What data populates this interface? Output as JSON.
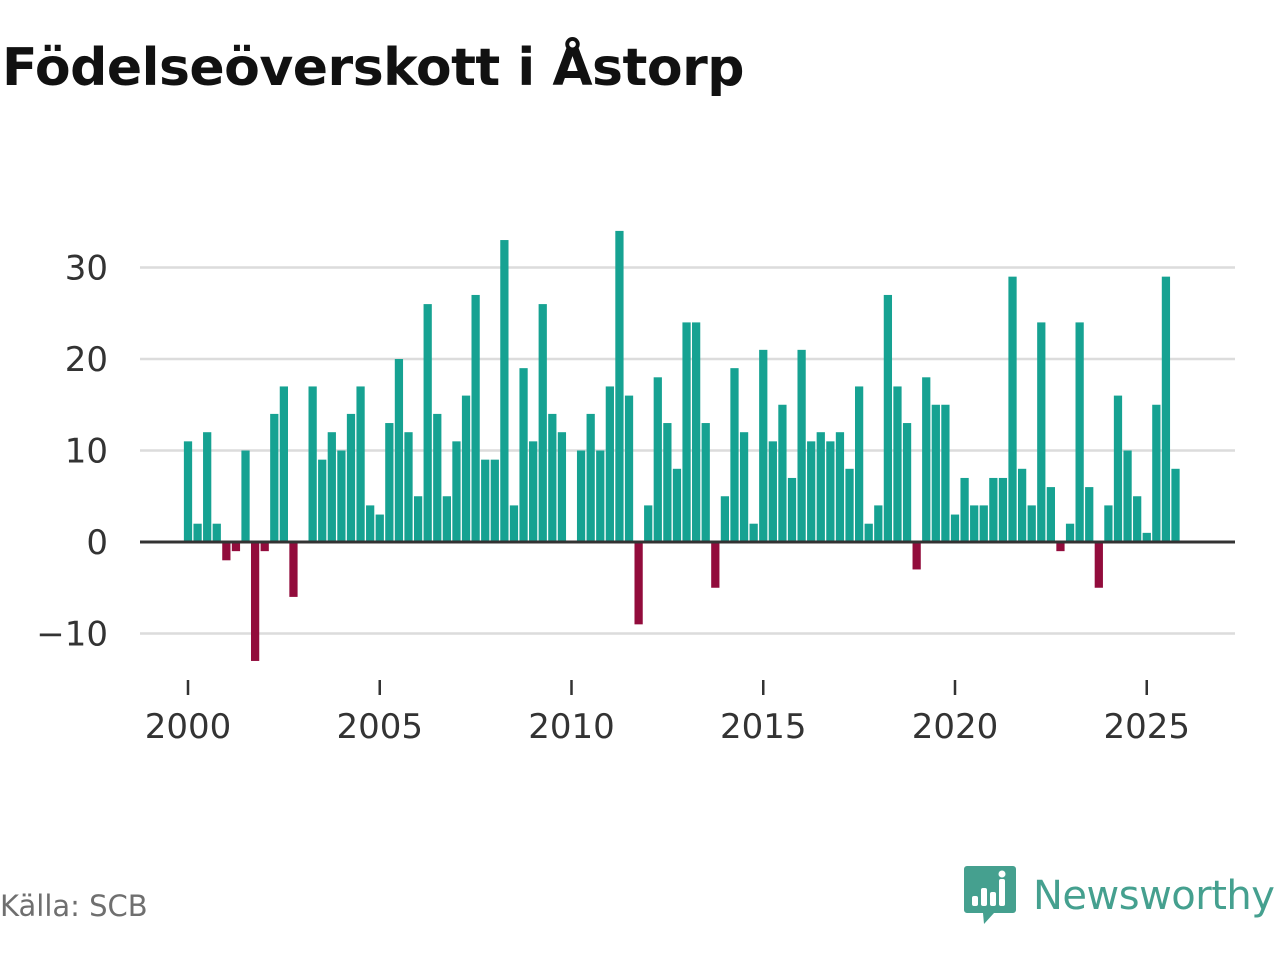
{
  "chart_data": {
    "type": "bar",
    "title": "Födelseöverskott i Åstorp",
    "xlabel": "",
    "ylabel": "",
    "x_range": [
      1999.0,
      2026.3
    ],
    "ylim": [
      -15,
      37
    ],
    "y_ticks": [
      30,
      20,
      10,
      0,
      -10
    ],
    "y_tick_labels": [
      "30",
      "20",
      "10",
      "0",
      "−10"
    ],
    "x_ticks": [
      2000,
      2005,
      2010,
      2015,
      2020,
      2025
    ],
    "x_tick_labels": [
      "2000",
      "2005",
      "2010",
      "2015",
      "2020",
      "2025"
    ],
    "grid": true,
    "frequency": "quarterly",
    "start": 2000.0,
    "step": 0.25,
    "positive_color": "#16a292",
    "negative_color": "#920c3c",
    "values": [
      11,
      2,
      12,
      2,
      -2,
      -1,
      10,
      -13,
      -1,
      14,
      17,
      -6,
      0,
      17,
      9,
      12,
      10,
      14,
      17,
      4,
      3,
      13,
      20,
      12,
      5,
      26,
      14,
      5,
      11,
      16,
      27,
      9,
      9,
      33,
      4,
      19,
      11,
      26,
      14,
      12,
      0,
      10,
      14,
      10,
      17,
      34,
      16,
      -9,
      4,
      18,
      13,
      8,
      24,
      24,
      13,
      -5,
      5,
      19,
      12,
      2,
      21,
      11,
      15,
      7,
      21,
      11,
      12,
      11,
      12,
      8,
      17,
      2,
      4,
      27,
      17,
      13,
      -3,
      18,
      15,
      15,
      3,
      7,
      4,
      4,
      7,
      7,
      29,
      8,
      4,
      24,
      6,
      -1,
      2,
      24,
      6,
      -5,
      4,
      16,
      10,
      5,
      1,
      15,
      29,
      8
    ]
  },
  "footer": {
    "source": "Källa: SCB",
    "brand": "Newsworthy"
  },
  "colors": {
    "grid": "#dcdcdc",
    "zero_line": "#333333",
    "brand": "#45a08f"
  },
  "icons": {
    "brand_logo": "newsworthy-logo-icon"
  }
}
